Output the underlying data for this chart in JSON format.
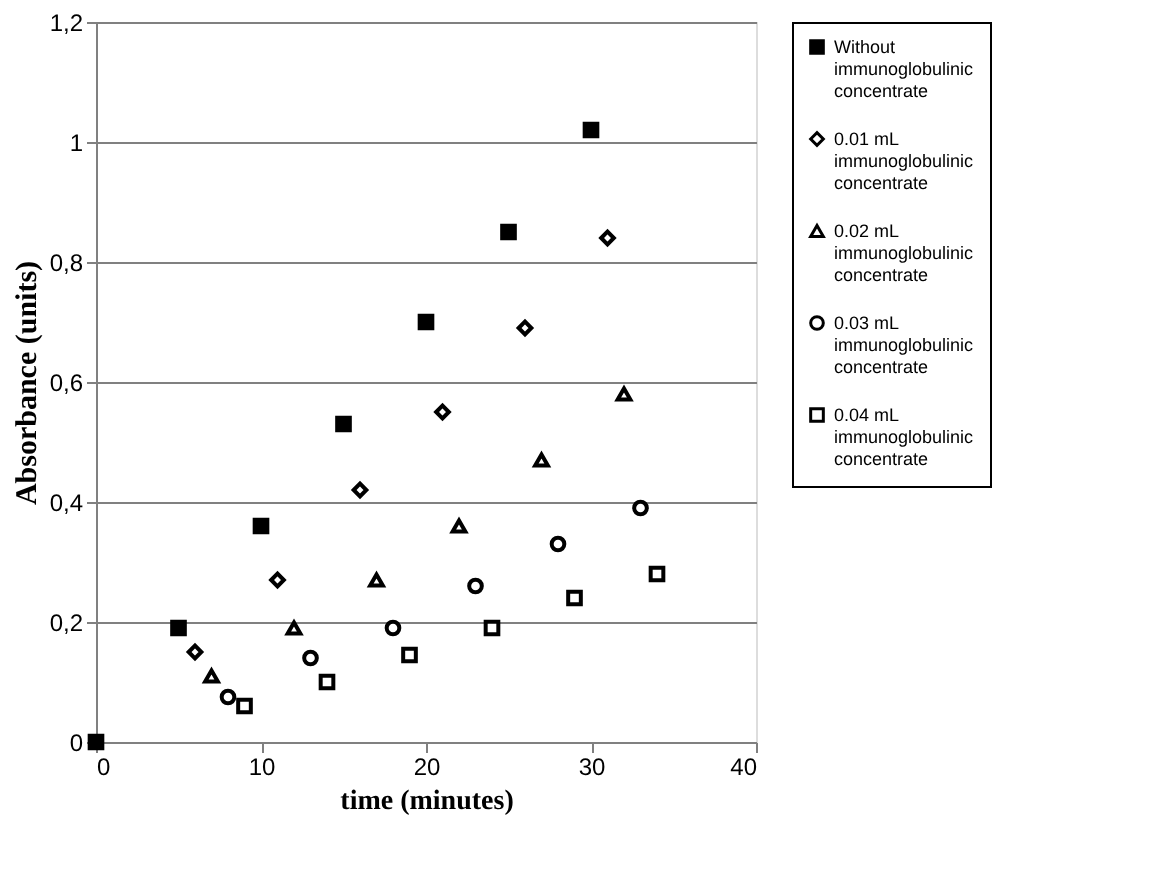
{
  "chart_data": {
    "type": "scatter",
    "xlabel": "time (minutes)",
    "ylabel": "Absorbance (units)",
    "xlim": [
      0,
      40
    ],
    "xticks": [
      0,
      10,
      20,
      30,
      40
    ],
    "ylim": [
      0,
      1.2
    ],
    "yticks": [
      0,
      {
        "value": 0.2,
        "label": "0,2"
      },
      {
        "value": 0.4,
        "label": "0,4"
      },
      {
        "value": 0.6,
        "label": "0,6"
      },
      {
        "value": 0.8,
        "label": "0,8"
      },
      1,
      {
        "value": 1.2,
        "label": "1,2"
      }
    ],
    "grid": "y",
    "legend": "right",
    "series": [
      {
        "name": "Without immunoglobulinic concentrate",
        "color": "#000000",
        "marker": "square",
        "x": [
          0,
          5,
          10,
          15,
          20,
          25,
          30
        ],
        "values": [
          0,
          0.19,
          0.36,
          0.53,
          0.7,
          0.85,
          1.02
        ]
      },
      {
        "name": "0.01 mL immunoglobulinic concentrate",
        "color": "#000000",
        "marker": "diamond",
        "x": [
          6,
          11,
          16,
          21,
          26,
          31
        ],
        "values": [
          0.15,
          0.27,
          0.42,
          0.55,
          0.69,
          0.84
        ]
      },
      {
        "name": "0.02 mL immunoglobulinic concentrate",
        "color": "#000000",
        "marker": "triangle",
        "x": [
          7,
          12,
          17,
          22,
          27,
          32
        ],
        "values": [
          0.11,
          0.19,
          0.27,
          0.36,
          0.47,
          0.58
        ]
      },
      {
        "name": "0.03 mL immunoglobulinic concentrate",
        "color": "#000000",
        "marker": "circle",
        "x": [
          8,
          13,
          18,
          23,
          28,
          33
        ],
        "values": [
          0.075,
          0.14,
          0.19,
          0.26,
          0.33,
          0.39
        ]
      },
      {
        "name": "0.04 mL immunoglobulinic concentrate",
        "color": "#000000",
        "marker": "square",
        "x": [
          9,
          14,
          19,
          24,
          29,
          34
        ],
        "values": [
          0.06,
          0.1,
          0.145,
          0.19,
          0.24,
          0.28
        ]
      }
    ]
  }
}
